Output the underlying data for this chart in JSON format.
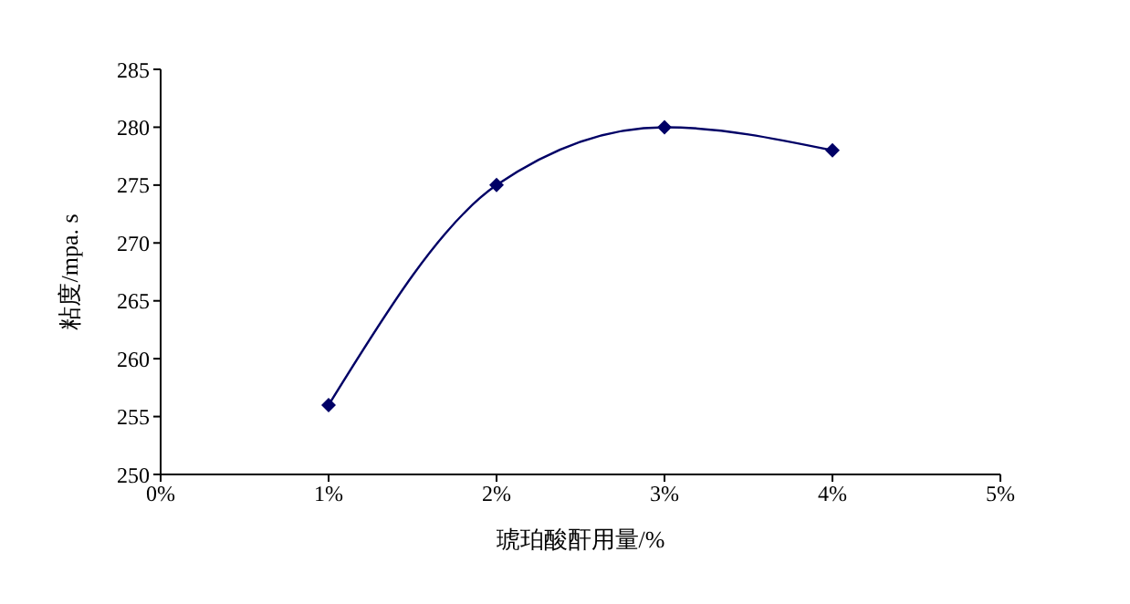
{
  "chart_data": {
    "type": "line",
    "xlabel": "琥珀酸酐用量/%",
    "ylabel": "粘度/mpa. s",
    "x": [
      1,
      2,
      3,
      4
    ],
    "series": [
      {
        "color": "#000066",
        "values": [
          256,
          275,
          280,
          278
        ]
      }
    ],
    "xlim": [
      0,
      5
    ],
    "xticks": [
      {
        "value": 0,
        "label": "0%"
      },
      {
        "value": 1,
        "label": "1%"
      },
      {
        "value": 2,
        "label": "2%"
      },
      {
        "value": 3,
        "label": "3%"
      },
      {
        "value": 4,
        "label": "4%"
      },
      {
        "value": 5,
        "label": "5%"
      }
    ],
    "ylim": [
      250,
      285
    ],
    "yticks": [
      250,
      255,
      260,
      265,
      270,
      275,
      280,
      285
    ],
    "marker": "diamond",
    "line_style": "solid",
    "grid": false,
    "legend": false
  }
}
